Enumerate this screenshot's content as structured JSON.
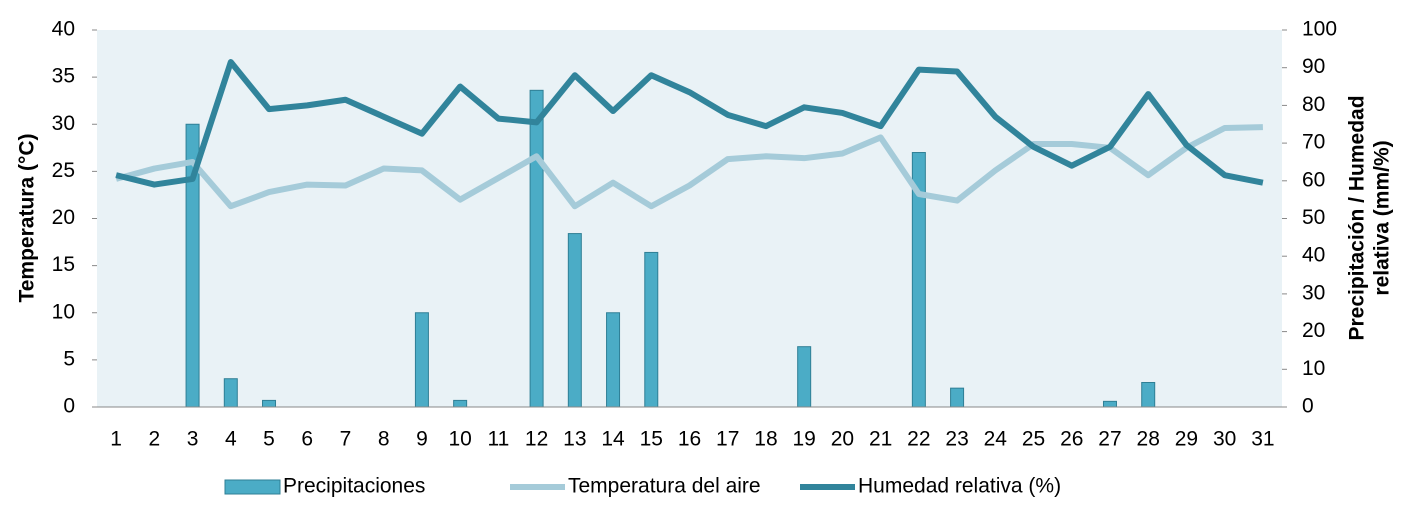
{
  "chart_data": {
    "type": "bar-line",
    "y_label": "Temperatura (°C)",
    "y2_label": [
      "Precipitación / Humedad",
      "relativa (mm/%)"
    ],
    "categories": [
      "1",
      "2",
      "3",
      "4",
      "5",
      "6",
      "7",
      "8",
      "9",
      "10",
      "11",
      "12",
      "13",
      "14",
      "15",
      "16",
      "17",
      "18",
      "19",
      "20",
      "21",
      "22",
      "23",
      "24",
      "25",
      "26",
      "27",
      "28",
      "29",
      "30",
      "31"
    ],
    "series": [
      {
        "name": "Precipitaciones",
        "kind": "bar",
        "axis": "y2",
        "color": "#4bacc6",
        "values": [
          0,
          0,
          75,
          7.5,
          1.75,
          0,
          0,
          0,
          25,
          1.75,
          0,
          84,
          46,
          25,
          41,
          0,
          0,
          0,
          16,
          0,
          0,
          67.5,
          5,
          0,
          0,
          0,
          1.5,
          6.5,
          0,
          0,
          0
        ]
      },
      {
        "name": "Temperatura del aire",
        "kind": "line",
        "axis": "y",
        "color": "#a5cbd9",
        "values": [
          24.2,
          25.3,
          26,
          21.3,
          22.8,
          23.6,
          23.5,
          25.3,
          25.1,
          22,
          24.3,
          26.6,
          21.3,
          23.8,
          21.3,
          23.5,
          26.3,
          26.6,
          26.4,
          26.9,
          28.6,
          22.6,
          21.9,
          25.1,
          27.9,
          27.9,
          27.5,
          24.6,
          27.5,
          29.6,
          29.7
        ]
      },
      {
        "name": "Humedad relativa (%)",
        "kind": "line",
        "axis": "y2",
        "color": "#31849b",
        "values": [
          61.5,
          59,
          60.5,
          91.5,
          79,
          80,
          81.5,
          77,
          72.5,
          85,
          76.5,
          75.5,
          88,
          78.5,
          88,
          83.5,
          77.5,
          74.5,
          79.5,
          78,
          74.5,
          89.5,
          89,
          77,
          69,
          64,
          69,
          83,
          69.5,
          61.5,
          59.5
        ]
      }
    ],
    "ylim": [
      0,
      40
    ],
    "yticks": [
      0,
      5,
      10,
      15,
      20,
      25,
      30,
      35,
      40
    ],
    "y2lim": [
      0,
      100
    ],
    "y2ticks": [
      0,
      10,
      20,
      30,
      40,
      50,
      60,
      70,
      80,
      90,
      100
    ],
    "legend": "bottom"
  }
}
